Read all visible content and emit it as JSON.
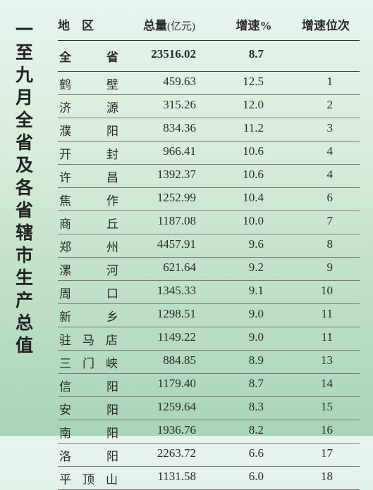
{
  "title_chars": [
    "一",
    "至",
    "九",
    "月",
    "全",
    "省",
    "及",
    "各",
    "省",
    "辖",
    "市",
    "生",
    "产",
    "总",
    "值"
  ],
  "header": {
    "region": "地　区",
    "total": "总量",
    "total_unit": "(亿元)",
    "growth": "增速%",
    "rank": "增速位次"
  },
  "total_row": {
    "region_c1": "全",
    "region_c2": "省",
    "total": "23516.02",
    "growth": "8.7",
    "rank": ""
  },
  "rows": [
    {
      "chars": [
        "鹤",
        "壁"
      ],
      "total": "459.63",
      "growth": "12.5",
      "rank": "1"
    },
    {
      "chars": [
        "济",
        "源"
      ],
      "total": "315.26",
      "growth": "12.0",
      "rank": "2"
    },
    {
      "chars": [
        "濮",
        "阳"
      ],
      "total": "834.36",
      "growth": "11.2",
      "rank": "3"
    },
    {
      "chars": [
        "开",
        "封"
      ],
      "total": "966.41",
      "growth": "10.6",
      "rank": "4"
    },
    {
      "chars": [
        "许",
        "昌"
      ],
      "total": "1392.37",
      "growth": "10.6",
      "rank": "4"
    },
    {
      "chars": [
        "焦",
        "作"
      ],
      "total": "1252.99",
      "growth": "10.4",
      "rank": "6"
    },
    {
      "chars": [
        "商",
        "丘"
      ],
      "total": "1187.08",
      "growth": "10.0",
      "rank": "7"
    },
    {
      "chars": [
        "郑",
        "州"
      ],
      "total": "4457.91",
      "growth": "9.6",
      "rank": "8"
    },
    {
      "chars": [
        "漯",
        "河"
      ],
      "total": "621.64",
      "growth": "9.2",
      "rank": "9"
    },
    {
      "chars": [
        "周",
        "口"
      ],
      "total": "1345.33",
      "growth": "9.1",
      "rank": "10"
    },
    {
      "chars": [
        "新",
        "乡"
      ],
      "total": "1298.51",
      "growth": "9.0",
      "rank": "11"
    },
    {
      "chars": [
        "驻",
        "马",
        "店"
      ],
      "total": "1149.22",
      "growth": "9.0",
      "rank": "11"
    },
    {
      "chars": [
        "三",
        "门",
        "峡"
      ],
      "total": "884.85",
      "growth": "8.9",
      "rank": "13"
    },
    {
      "chars": [
        "信",
        "阳"
      ],
      "total": "1179.40",
      "growth": "8.7",
      "rank": "14"
    },
    {
      "chars": [
        "安",
        "阳"
      ],
      "total": "1259.64",
      "growth": "8.3",
      "rank": "15"
    },
    {
      "chars": [
        "南",
        "阳"
      ],
      "total": "1936.76",
      "growth": "8.2",
      "rank": "16"
    },
    {
      "chars": [
        "洛",
        "阳"
      ],
      "total": "2263.72",
      "growth": "6.6",
      "rank": "17"
    },
    {
      "chars": [
        "平",
        "顶",
        "山"
      ],
      "total": "1131.58",
      "growth": "6.0",
      "rank": "18"
    }
  ],
  "colors": {
    "bg_top": "#e8f4f0",
    "bg_bottom": "#a8d4b8",
    "text": "#2a2a2a",
    "rule": "#333333"
  }
}
